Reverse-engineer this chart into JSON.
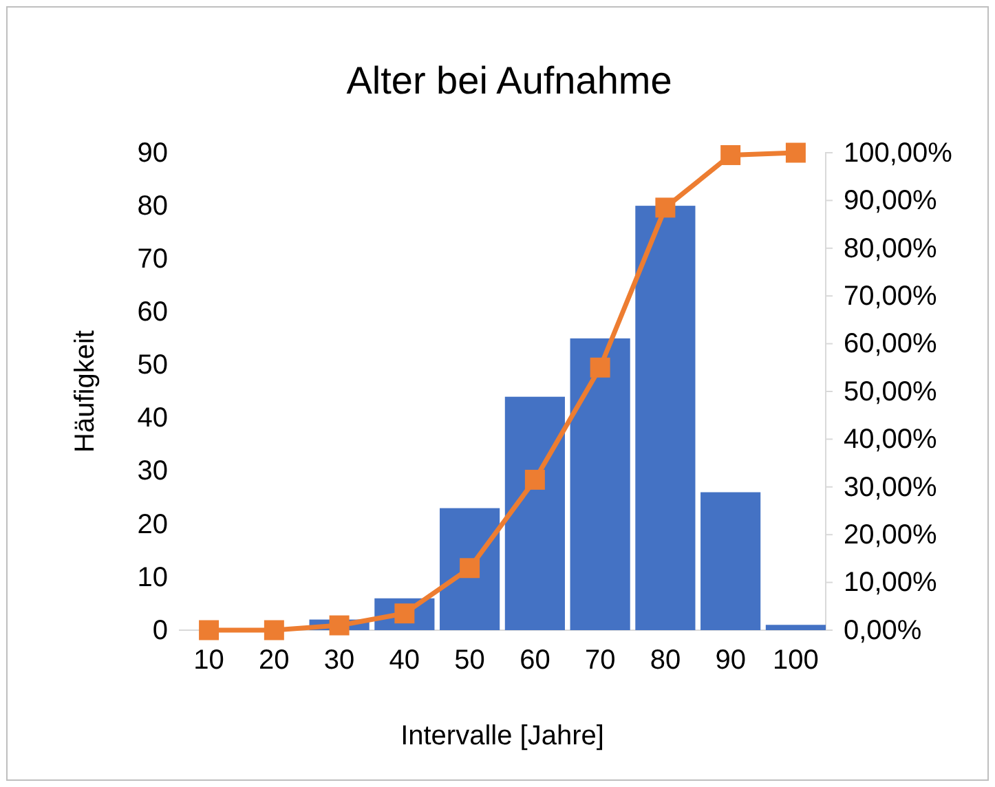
{
  "chart_data": {
    "type": "bar",
    "title": "Alter bei Aufnahme",
    "xlabel": "Intervalle [Jahre]",
    "ylabel": "Häufigkeit",
    "categories": [
      "10",
      "20",
      "30",
      "40",
      "50",
      "60",
      "70",
      "80",
      "90",
      "100"
    ],
    "series": [
      {
        "color": "#4472c4",
        "values": [
          0,
          0,
          2,
          6,
          23,
          44,
          55,
          80,
          26,
          1
        ]
      },
      {
        "type": "line",
        "axis": "y2",
        "color": "#ed7d31",
        "marker": "square",
        "values": [
          0,
          0,
          1,
          3.5,
          13,
          31.5,
          55,
          88.5,
          99.5,
          100
        ]
      }
    ],
    "ylim": [
      0,
      90
    ],
    "yticks": [
      0,
      10,
      20,
      30,
      40,
      50,
      60,
      70,
      80,
      90
    ],
    "y2lim": [
      0,
      100
    ],
    "y2ticks": [
      {
        "value": 0,
        "label": "0,00%"
      },
      {
        "value": 10,
        "label": "10,00%"
      },
      {
        "value": 20,
        "label": "20,00%"
      },
      {
        "value": 30,
        "label": "30,00%"
      },
      {
        "value": 40,
        "label": "40,00%"
      },
      {
        "value": 50,
        "label": "50,00%"
      },
      {
        "value": 60,
        "label": "60,00%"
      },
      {
        "value": 70,
        "label": "70,00%"
      },
      {
        "value": 80,
        "label": "80,00%"
      },
      {
        "value": 90,
        "label": "90,00%"
      },
      {
        "value": 100,
        "label": "100,00%"
      }
    ],
    "grid": false
  }
}
